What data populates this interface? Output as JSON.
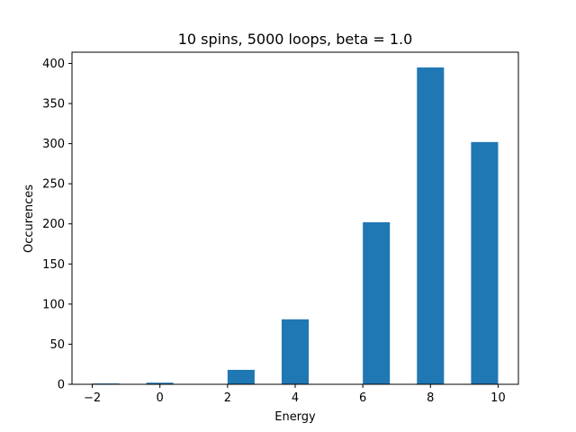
{
  "chart_data": {
    "type": "bar",
    "title": "10 spins, 5000 loops, beta = 1.0",
    "xlabel": "Energy",
    "ylabel": "Occurences",
    "xlim": [
      -2.6,
      10.6
    ],
    "ylim": [
      0,
      414
    ],
    "x_ticks": [
      -2,
      0,
      2,
      4,
      6,
      8,
      10
    ],
    "x_tick_labels": [
      "−2",
      "0",
      "2",
      "4",
      "6",
      "8",
      "10"
    ],
    "y_ticks": [
      0,
      50,
      100,
      150,
      200,
      250,
      300,
      350,
      400
    ],
    "y_tick_labels": [
      "0",
      "50",
      "100",
      "150",
      "200",
      "250",
      "300",
      "350",
      "400"
    ],
    "bar_color": "#1f77b4",
    "bars": [
      {
        "x0": -2.0,
        "x1": -1.2,
        "value": 1
      },
      {
        "x0": -0.4,
        "x1": 0.4,
        "value": 2
      },
      {
        "x0": 2.0,
        "x1": 2.8,
        "value": 18
      },
      {
        "x0": 3.6,
        "x1": 4.4,
        "value": 81
      },
      {
        "x0": 6.0,
        "x1": 6.8,
        "value": 202
      },
      {
        "x0": 7.6,
        "x1": 8.4,
        "value": 395
      },
      {
        "x0": 9.2,
        "x1": 10.0,
        "value": 302
      }
    ],
    "grid": false,
    "legend": "none"
  }
}
